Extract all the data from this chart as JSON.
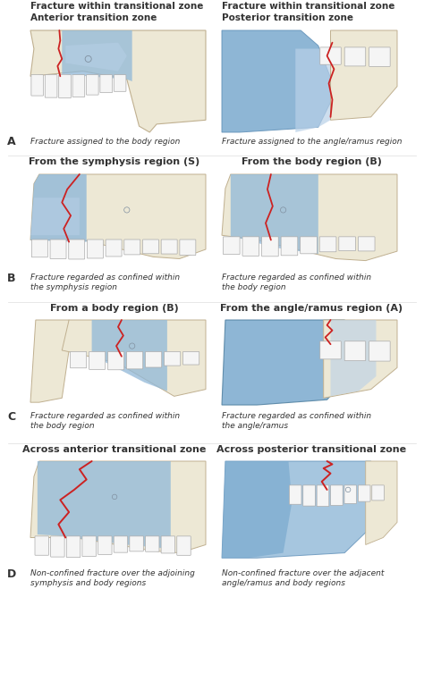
{
  "background_color": "#ffffff",
  "title_fontsize": 7.5,
  "section_label_fontsize": 9,
  "caption_fontsize": 6.5,
  "mandible_color_cream": "#ede8d5",
  "mandible_color_blue_dark": "#7aaace",
  "mandible_color_blue_light": "#b8d0e8",
  "mandible_color_blue_mid": "#90b8d8",
  "mandible_color_tan": "#d4c9a8",
  "mandible_shadow": "#c8bea0",
  "fracture_color": "#cc2222",
  "text_color": "#333333",
  "tooth_white": "#f5f5f5",
  "tooth_edge": "#aaaaaa",
  "sections": [
    {
      "left_title": "Fracture within transitional zone\nAnterior transition zone",
      "right_title": "Fracture within transitional zone\nPosterior transition zone",
      "label": "A",
      "left_caption": "Fracture assigned to the body region",
      "right_caption": "Fracture assigned to the angle/ramus region"
    },
    {
      "left_title": "From the symphysis region (S)",
      "right_title": "From the body region (B)",
      "label": "B",
      "left_caption": "Fracture regarded as confined within\nthe symphysis region",
      "right_caption": "Fracture regarded as confined within\nthe body region"
    },
    {
      "left_title": "From a body region (B)",
      "right_title": "From the angle/ramus region (A)",
      "label": "C",
      "left_caption": "Fracture regarded as confined within\nthe body region",
      "right_caption": "Fracture regarded as confined within\nthe angle/ramus"
    },
    {
      "left_title": "Across anterior transitional zone",
      "right_title": "Across posterior transitional zone",
      "label": "D",
      "left_caption": "Non-confined fracture over the adjoining\nsymphysis and body regions",
      "right_caption": "Non-confined fracture over the adjacent\nangle/ramus and body regions"
    }
  ]
}
